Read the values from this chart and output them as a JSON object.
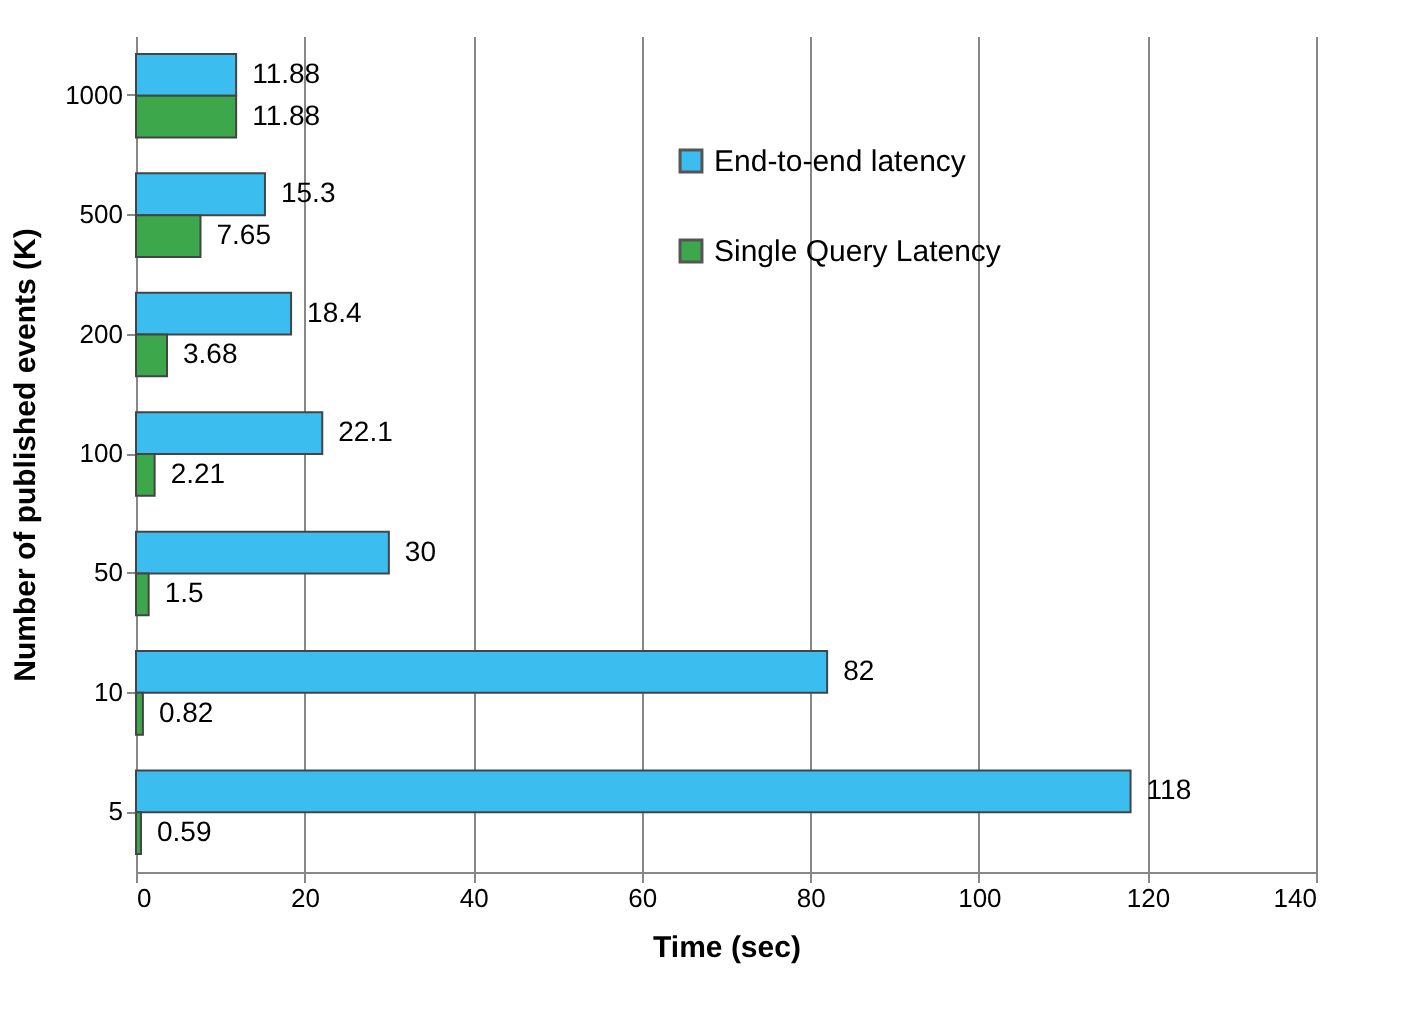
{
  "chart_data": {
    "type": "bar",
    "orientation": "horizontal",
    "xlabel": "Time (sec)",
    "ylabel": "Number of published events (K)",
    "categories": [
      "1000",
      "500",
      "200",
      "100",
      "50",
      "10",
      "5"
    ],
    "series": [
      {
        "name": "End-to-end latency",
        "color": "#3cbdef",
        "values": [
          11.88,
          15.3,
          18.4,
          22.1,
          30,
          82,
          118
        ]
      },
      {
        "name": "Single Query Latency",
        "color": "#3da84b",
        "values": [
          11.88,
          7.65,
          3.68,
          2.21,
          1.5,
          0.82,
          0.59
        ]
      }
    ],
    "xlim": [
      0,
      140
    ],
    "xticks": [
      0,
      20,
      40,
      60,
      80,
      100,
      120,
      140
    ],
    "grid": "x",
    "legend": "top right",
    "data_labels": true
  }
}
